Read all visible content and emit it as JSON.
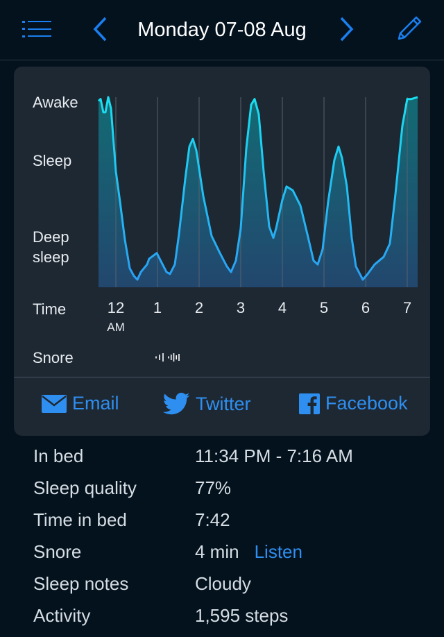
{
  "header": {
    "title": "Monday 07-08 Aug",
    "menu_icon": "list-icon",
    "prev_icon": "chevron-left-icon",
    "next_icon": "chevron-right-icon",
    "edit_icon": "pencil-icon"
  },
  "colors": {
    "accent": "#2e8ff0",
    "line_top": "#19e0f0",
    "line_bottom": "#2a9df5",
    "card": "#1e2833",
    "background": "#04121e"
  },
  "chart_data": {
    "type": "area",
    "y_levels": [
      {
        "label": "Awake",
        "value": 100
      },
      {
        "label": "Sleep",
        "value": 66
      },
      {
        "label": "Deep sleep",
        "value": 21
      }
    ],
    "ylim": [
      0,
      100
    ],
    "xlabel": "Time",
    "x_ticks": [
      {
        "label": "12",
        "sub": "AM",
        "time": "00:00"
      },
      {
        "label": "1",
        "time": "01:00"
      },
      {
        "label": "2",
        "time": "02:00"
      },
      {
        "label": "3",
        "time": "03:00"
      },
      {
        "label": "4",
        "time": "04:00"
      },
      {
        "label": "5",
        "time": "05:00"
      },
      {
        "label": "6",
        "time": "06:00"
      },
      {
        "label": "7",
        "time": "07:00"
      }
    ],
    "xlim": [
      "23:35",
      "07:15"
    ],
    "grid": "vertical",
    "points": [
      [
        "23:35",
        98
      ],
      [
        "23:38",
        99
      ],
      [
        "23:42",
        92
      ],
      [
        "23:45",
        92
      ],
      [
        "23:49",
        100
      ],
      [
        "23:53",
        94
      ],
      [
        "00:00",
        61
      ],
      [
        "00:06",
        45
      ],
      [
        "00:13",
        25
      ],
      [
        "00:20",
        10
      ],
      [
        "00:26",
        6
      ],
      [
        "00:31",
        4
      ],
      [
        "00:36",
        8
      ],
      [
        "00:45",
        12
      ],
      [
        "00:48",
        15
      ],
      [
        "00:59",
        18
      ],
      [
        "01:06",
        13
      ],
      [
        "01:13",
        8
      ],
      [
        "01:18",
        7
      ],
      [
        "01:25",
        12
      ],
      [
        "01:31",
        28
      ],
      [
        "01:40",
        57
      ],
      [
        "01:46",
        74
      ],
      [
        "01:51",
        78
      ],
      [
        "01:56",
        72
      ],
      [
        "02:06",
        48
      ],
      [
        "02:18",
        27
      ],
      [
        "02:30",
        18
      ],
      [
        "02:40",
        11
      ],
      [
        "02:46",
        8
      ],
      [
        "02:53",
        14
      ],
      [
        "03:00",
        31
      ],
      [
        "03:08",
        73
      ],
      [
        "03:15",
        96
      ],
      [
        "03:20",
        99
      ],
      [
        "03:26",
        91
      ],
      [
        "03:33",
        61
      ],
      [
        "03:41",
        32
      ],
      [
        "03:47",
        26
      ],
      [
        "03:51",
        31
      ],
      [
        "04:00",
        46
      ],
      [
        "04:06",
        53
      ],
      [
        "04:15",
        51
      ],
      [
        "04:26",
        43
      ],
      [
        "04:36",
        28
      ],
      [
        "04:45",
        14
      ],
      [
        "04:51",
        12
      ],
      [
        "04:58",
        20
      ],
      [
        "05:06",
        45
      ],
      [
        "05:15",
        67
      ],
      [
        "05:21",
        74
      ],
      [
        "05:26",
        68
      ],
      [
        "05:33",
        53
      ],
      [
        "05:40",
        26
      ],
      [
        "05:46",
        11
      ],
      [
        "05:56",
        4
      ],
      [
        "06:03",
        7
      ],
      [
        "06:13",
        12
      ],
      [
        "06:26",
        16
      ],
      [
        "06:35",
        23
      ],
      [
        "06:43",
        49
      ],
      [
        "06:53",
        85
      ],
      [
        "07:00",
        99
      ],
      [
        "07:06",
        99
      ],
      [
        "07:15",
        100
      ]
    ],
    "snore_label": "Snore",
    "snore_events": [
      [
        "00:58",
        "01:08"
      ],
      [
        "01:16",
        "01:31"
      ]
    ]
  },
  "share": [
    {
      "label": "Email",
      "icon": "envelope-icon"
    },
    {
      "label": "Twitter",
      "icon": "twitter-bird-icon"
    },
    {
      "label": "Facebook",
      "icon": "facebook-icon"
    }
  ],
  "stats": [
    {
      "label": "In bed",
      "value": "11:34 PM - 7:16 AM"
    },
    {
      "label": "Sleep quality",
      "value": "77%"
    },
    {
      "label": "Time in bed",
      "value": "7:42"
    },
    {
      "label": "Snore",
      "value": "4 min",
      "link": "Listen"
    },
    {
      "label": "Sleep notes",
      "value": "Cloudy"
    },
    {
      "label": "Activity",
      "value": "1,595 steps"
    }
  ]
}
